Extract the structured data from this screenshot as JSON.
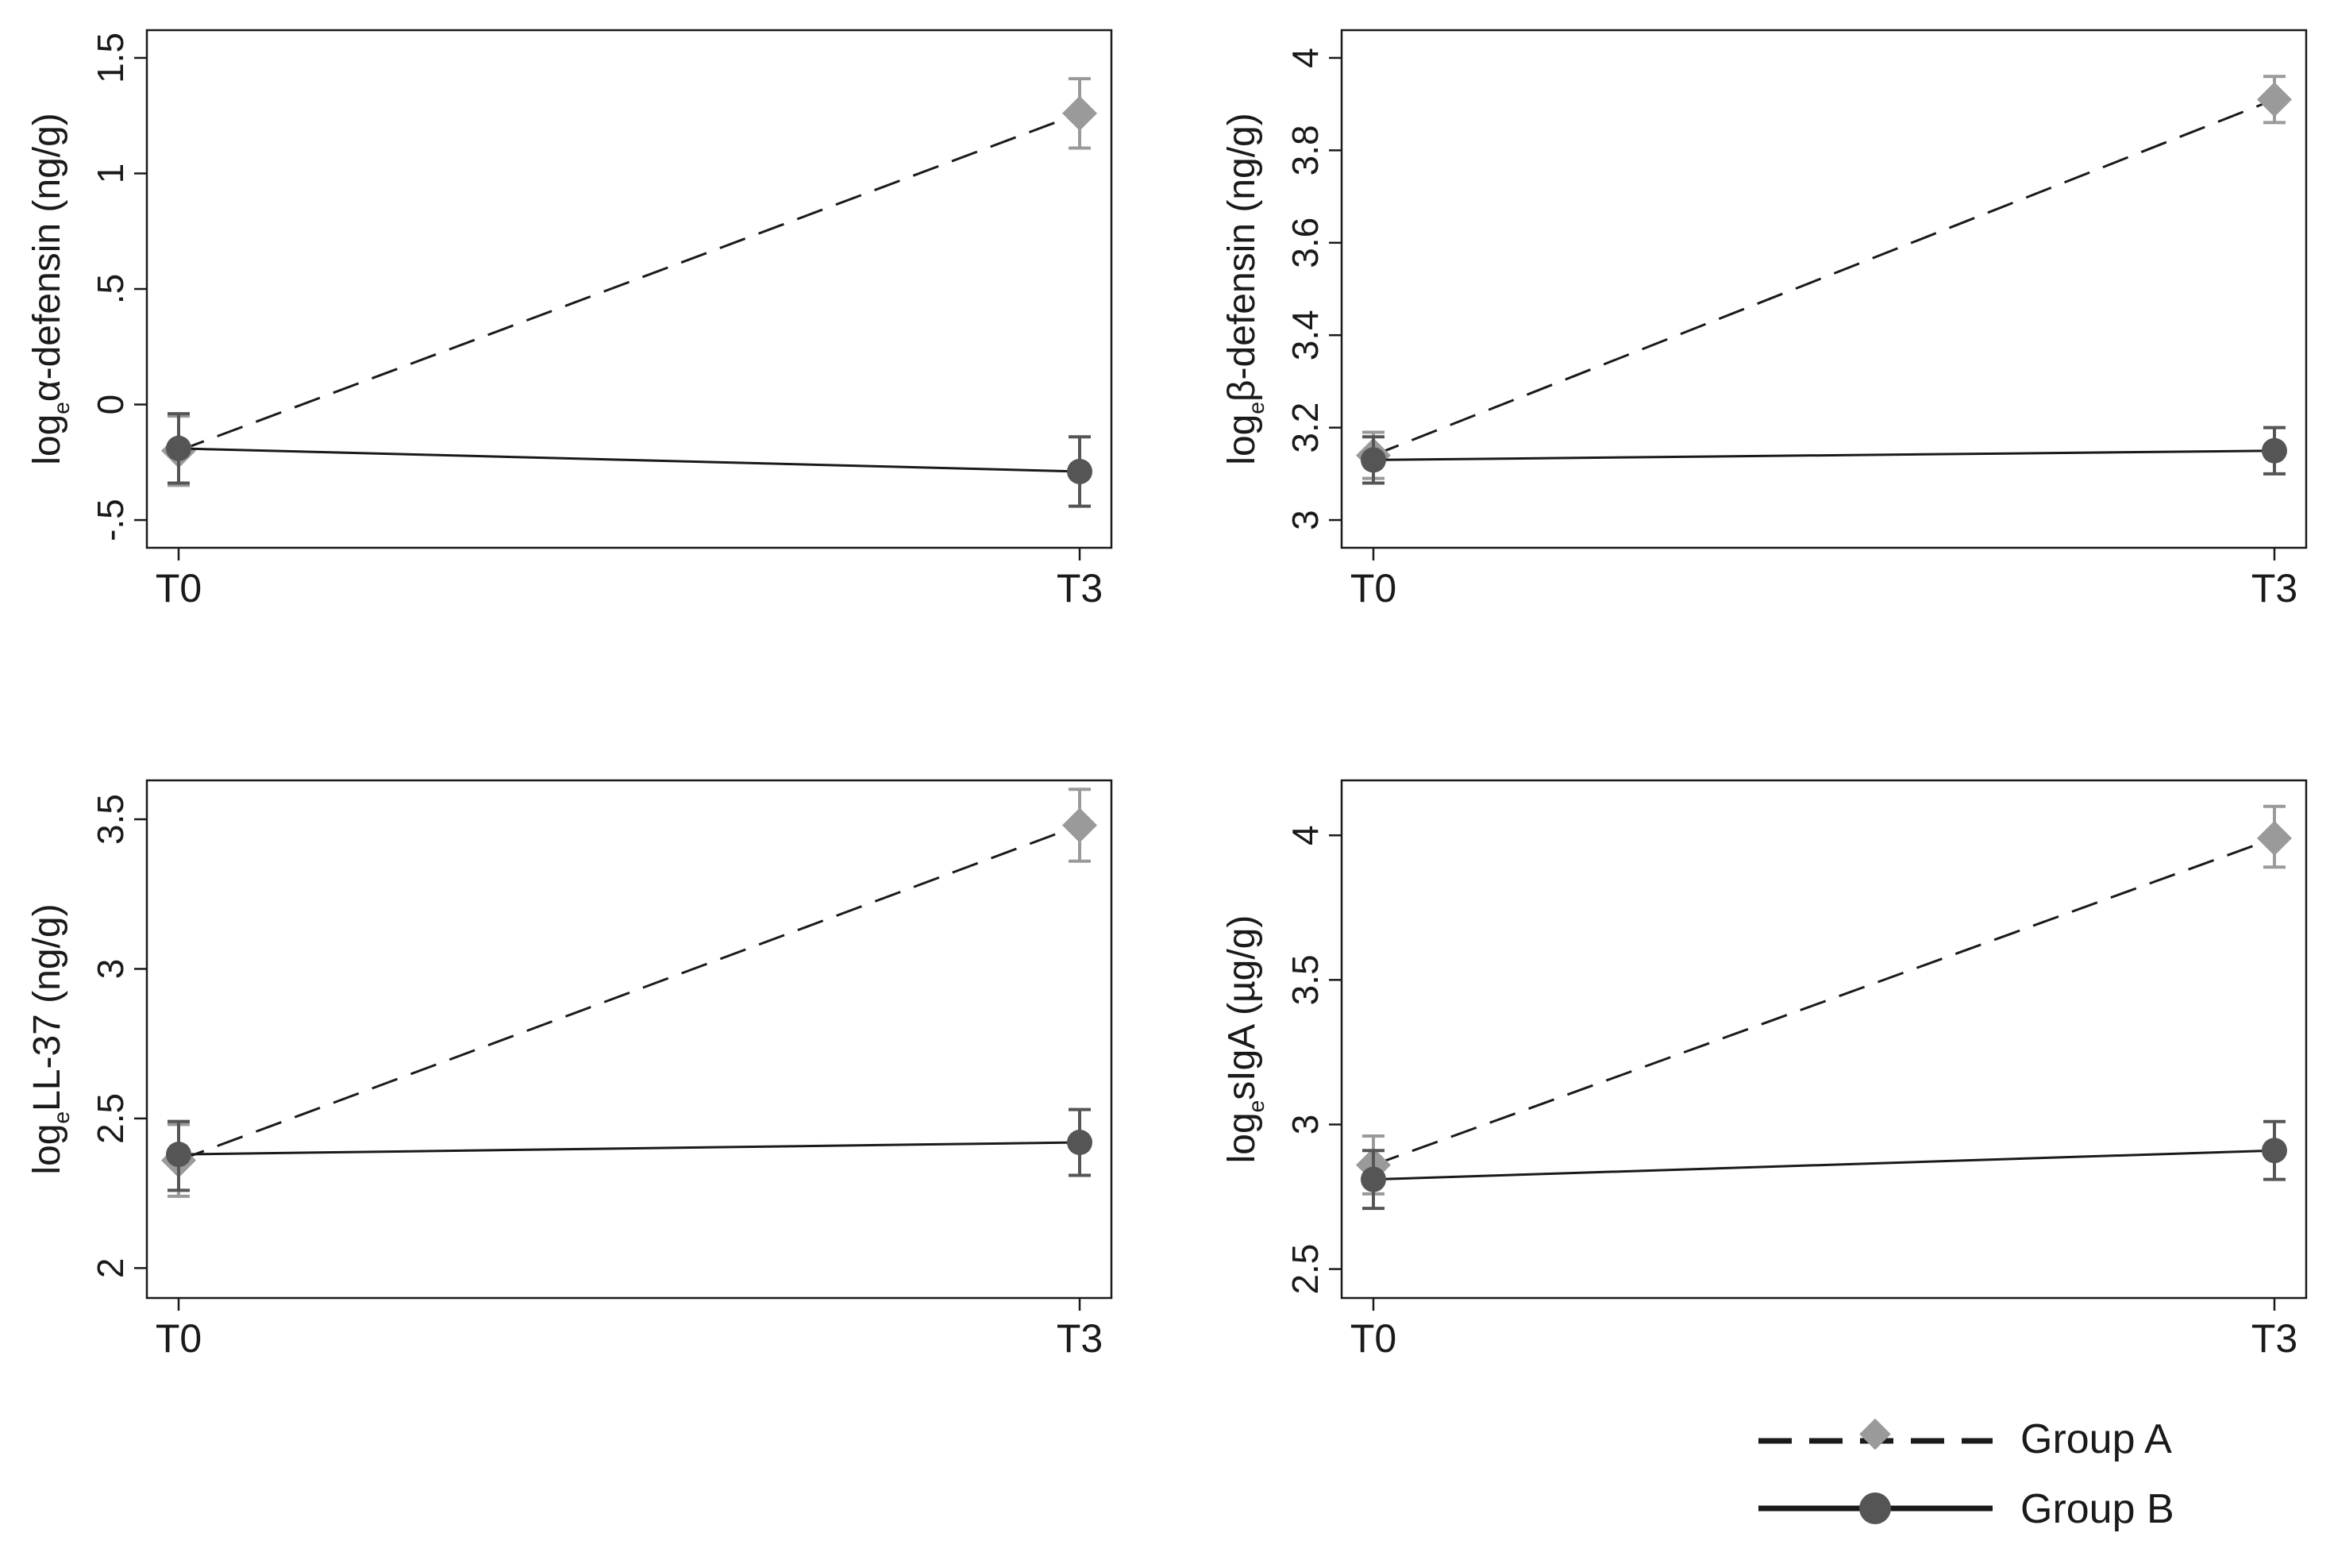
{
  "chart_data": [
    {
      "type": "line",
      "panel": "top-left",
      "categories": [
        "T0",
        "T3"
      ],
      "ylabel_prefix": "log",
      "ylabel_sub": "e",
      "ylabel_rest": "α-defensin (ng/g)",
      "ylim": [
        -0.62,
        1.62
      ],
      "yticks": [
        -0.5,
        0,
        0.5,
        1,
        1.5
      ],
      "ytick_labels": [
        "-.5",
        "0",
        ".5",
        "1",
        "1.5"
      ],
      "grid": false,
      "series": [
        {
          "name": "Group A",
          "values": [
            -0.2,
            1.26
          ],
          "err_low": [
            -0.35,
            1.11
          ],
          "err_high": [
            -0.05,
            1.41
          ]
        },
        {
          "name": "Group B",
          "values": [
            -0.19,
            -0.29
          ],
          "err_low": [
            -0.34,
            -0.44
          ],
          "err_high": [
            -0.04,
            -0.14
          ]
        }
      ]
    },
    {
      "type": "line",
      "panel": "top-right",
      "categories": [
        "T0",
        "T3"
      ],
      "ylabel_prefix": "log",
      "ylabel_sub": "e",
      "ylabel_rest": "β-defensin (ng/g)",
      "ylim": [
        2.94,
        4.06
      ],
      "yticks": [
        3,
        3.2,
        3.4,
        3.6,
        3.8,
        4
      ],
      "ytick_labels": [
        "3",
        "3.2",
        "3.4",
        "3.6",
        "3.8",
        "4"
      ],
      "grid": false,
      "series": [
        {
          "name": "Group A",
          "values": [
            3.14,
            3.91
          ],
          "err_low": [
            3.09,
            3.86
          ],
          "err_high": [
            3.19,
            3.96
          ]
        },
        {
          "name": "Group B",
          "values": [
            3.13,
            3.15
          ],
          "err_low": [
            3.08,
            3.1
          ],
          "err_high": [
            3.18,
            3.2
          ]
        }
      ]
    },
    {
      "type": "line",
      "panel": "bottom-left",
      "categories": [
        "T0",
        "T3"
      ],
      "ylabel_prefix": "log",
      "ylabel_sub": "e",
      "ylabel_rest": "LL-37 (ng/g)",
      "ylim": [
        1.9,
        3.63
      ],
      "yticks": [
        2,
        2.5,
        3,
        3.5
      ],
      "ytick_labels": [
        "2",
        "2.5",
        "3",
        "3.5"
      ],
      "grid": false,
      "series": [
        {
          "name": "Group A",
          "values": [
            2.36,
            3.48
          ],
          "err_low": [
            2.24,
            3.36
          ],
          "err_high": [
            2.48,
            3.6
          ]
        },
        {
          "name": "Group B",
          "values": [
            2.38,
            2.42
          ],
          "err_low": [
            2.26,
            2.31
          ],
          "err_high": [
            2.49,
            2.53
          ]
        }
      ]
    },
    {
      "type": "line",
      "panel": "bottom-right",
      "categories": [
        "T0",
        "T3"
      ],
      "ylabel_prefix": "log",
      "ylabel_sub": "e",
      "ylabel_rest": "sIgA (µg/g)",
      "ylim": [
        2.4,
        4.19
      ],
      "yticks": [
        2.5,
        3,
        3.5,
        4
      ],
      "ytick_labels": [
        "2.5",
        "3",
        "3.5",
        "4"
      ],
      "grid": false,
      "series": [
        {
          "name": "Group A",
          "values": [
            2.86,
            3.99
          ],
          "err_low": [
            2.76,
            3.89
          ],
          "err_high": [
            2.96,
            4.1
          ]
        },
        {
          "name": "Group B",
          "values": [
            2.81,
            2.91
          ],
          "err_low": [
            2.71,
            2.81
          ],
          "err_high": [
            2.91,
            3.01
          ]
        }
      ]
    }
  ],
  "legend": {
    "placement": "bottom-right",
    "items": [
      {
        "label": "Group A",
        "line": "dashed",
        "marker": "diamond",
        "color": "#9a9a9a"
      },
      {
        "label": "Group B",
        "line": "solid",
        "marker": "circle",
        "color": "#555555"
      }
    ]
  },
  "colors": {
    "group_a_marker": "#9a9a9a",
    "group_b_marker": "#555555",
    "line": "#1a1a1a",
    "axis": "#1a1a1a"
  }
}
